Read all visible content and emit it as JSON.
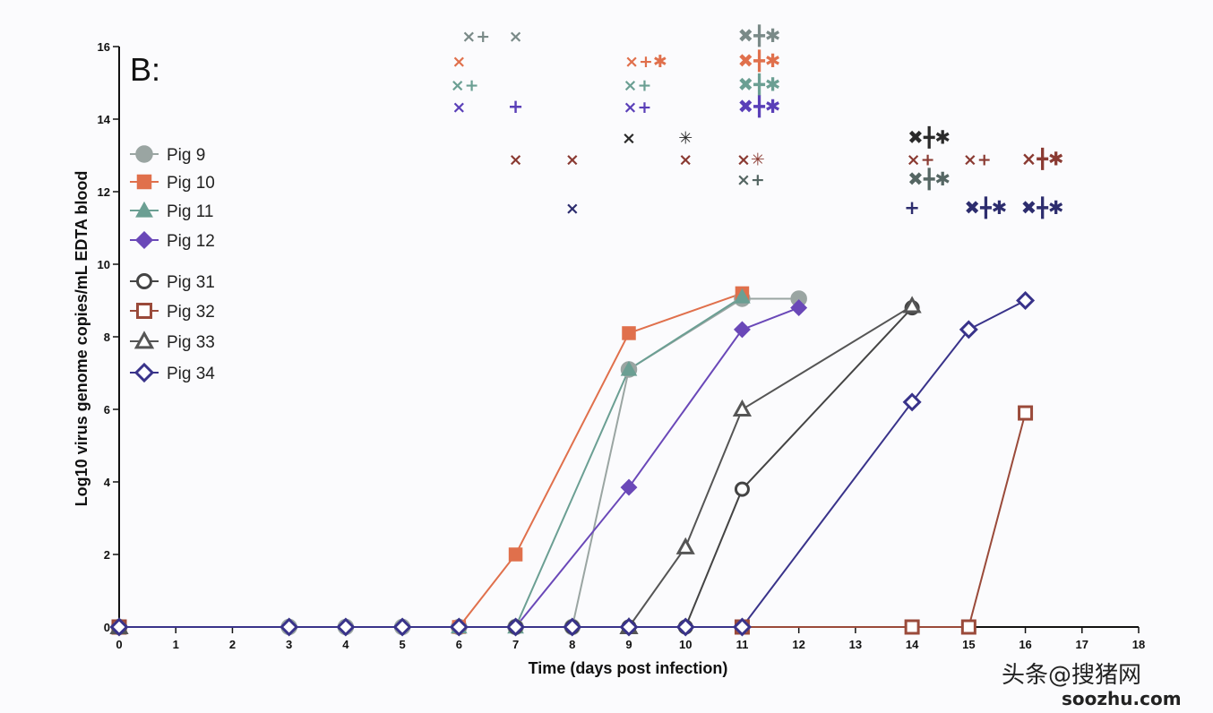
{
  "chart_data": {
    "type": "line",
    "panel_label": "B:",
    "xlabel": "Time (days post infection)",
    "ylabel": "Log10 virus genome copies/mL EDTA blood",
    "xlim": [
      0,
      18
    ],
    "ylim": [
      0,
      16
    ],
    "x_ticks": [
      "0",
      "1",
      "2",
      "3",
      "4",
      "5",
      "6",
      "7",
      "8",
      "9",
      "10",
      "11",
      "12",
      "13",
      "14",
      "15",
      "16",
      "17",
      "18"
    ],
    "y_ticks": [
      "0",
      "2",
      "4",
      "6",
      "8",
      "10",
      "12",
      "14",
      "16"
    ],
    "grid": false,
    "legend_position": "left",
    "series": [
      {
        "name": "Pig 9",
        "marker": "circle",
        "filled": true,
        "color": "#9aa5a2",
        "points": [
          [
            0,
            0
          ],
          [
            3,
            0
          ],
          [
            4,
            0
          ],
          [
            5,
            0
          ],
          [
            6,
            0
          ],
          [
            7,
            0
          ],
          [
            8,
            0
          ],
          [
            9,
            7.1
          ],
          [
            11,
            9.05
          ],
          [
            12,
            9.05
          ]
        ]
      },
      {
        "name": "Pig 10",
        "marker": "square",
        "filled": true,
        "color": "#e0704c",
        "points": [
          [
            0,
            0
          ],
          [
            6,
            0
          ],
          [
            7,
            2.0
          ],
          [
            9,
            8.1
          ],
          [
            11,
            9.2
          ]
        ]
      },
      {
        "name": "Pig 11",
        "marker": "triangle",
        "filled": true,
        "color": "#6b9f93",
        "points": [
          [
            0,
            0
          ],
          [
            6,
            0
          ],
          [
            7,
            0
          ],
          [
            9,
            7.1
          ],
          [
            11,
            9.1
          ]
        ]
      },
      {
        "name": "Pig 12",
        "marker": "diamond",
        "filled": true,
        "color": "#6a48b8",
        "points": [
          [
            0,
            0
          ],
          [
            7,
            0
          ],
          [
            9,
            3.85
          ],
          [
            11,
            8.2
          ],
          [
            12,
            8.8
          ]
        ]
      },
      {
        "name": "Pig 31",
        "marker": "circle",
        "filled": false,
        "color": "#444444",
        "points": [
          [
            0,
            0
          ],
          [
            7,
            0
          ],
          [
            8,
            0
          ],
          [
            9,
            0
          ],
          [
            10,
            0
          ],
          [
            11,
            3.8
          ],
          [
            14,
            8.8
          ]
        ]
      },
      {
        "name": "Pig 32",
        "marker": "square",
        "filled": false,
        "color": "#9a4a3a",
        "points": [
          [
            0,
            0
          ],
          [
            11,
            0
          ],
          [
            14,
            0
          ],
          [
            15,
            0
          ],
          [
            16,
            5.9
          ]
        ]
      },
      {
        "name": "Pig 33",
        "marker": "triangle",
        "filled": false,
        "color": "#555555",
        "points": [
          [
            0,
            0
          ],
          [
            9,
            0
          ],
          [
            10,
            2.2
          ],
          [
            11,
            6.0
          ],
          [
            14,
            8.85
          ]
        ]
      },
      {
        "name": "Pig 34",
        "marker": "diamond",
        "filled": false,
        "color": "#39338a",
        "points": [
          [
            0,
            0
          ],
          [
            3,
            0
          ],
          [
            4,
            0
          ],
          [
            5,
            0
          ],
          [
            6,
            0
          ],
          [
            7,
            0
          ],
          [
            8,
            0
          ],
          [
            9,
            0
          ],
          [
            10,
            0
          ],
          [
            11,
            0
          ],
          [
            14,
            6.2
          ],
          [
            15,
            8.2
          ],
          [
            16,
            9.0
          ]
        ]
      }
    ],
    "symbol_rows": [
      {
        "y": 16.3,
        "color": "#7a8a88",
        "symbols": [
          {
            "x": 6.3,
            "text": "×+",
            "size": 19
          },
          {
            "x": 7.0,
            "text": "×",
            "size": 19
          },
          {
            "x": 11.3,
            "text": "✖╋✱",
            "size": 21
          }
        ]
      },
      {
        "y": 15.6,
        "color": "#e0704c",
        "symbols": [
          {
            "x": 6.0,
            "text": "×",
            "size": 19
          },
          {
            "x": 9.3,
            "text": "×+✱",
            "size": 19
          },
          {
            "x": 11.3,
            "text": "✖╋✱",
            "size": 21
          }
        ]
      },
      {
        "y": 14.95,
        "color": "#6b9f93",
        "symbols": [
          {
            "x": 6.1,
            "text": "×+",
            "size": 19
          },
          {
            "x": 9.15,
            "text": "×+",
            "size": 19
          },
          {
            "x": 11.3,
            "text": "✖╋✱",
            "size": 21
          }
        ]
      },
      {
        "y": 14.35,
        "color": "#5a3fb8",
        "symbols": [
          {
            "x": 6.0,
            "text": "×",
            "size": 19
          },
          {
            "x": 7.0,
            "text": "+",
            "size": 21
          },
          {
            "x": 9.15,
            "text": "×+",
            "size": 19
          },
          {
            "x": 11.3,
            "text": "✖╋✱",
            "size": 21
          }
        ]
      },
      {
        "y": 13.5,
        "color": "#2a2a2a",
        "symbols": [
          {
            "x": 9.0,
            "text": "×",
            "size": 19
          },
          {
            "x": 10.0,
            "text": "✳",
            "size": 19
          },
          {
            "x": 14.3,
            "text": "✖╋✱",
            "size": 21
          }
        ]
      },
      {
        "y": 12.9,
        "color": "#8a3a32",
        "symbols": [
          {
            "x": 7.0,
            "text": "×",
            "size": 19
          },
          {
            "x": 8.0,
            "text": "×",
            "size": 19
          },
          {
            "x": 10.0,
            "text": "×",
            "size": 19
          },
          {
            "x": 11.15,
            "text": "×✳",
            "size": 19
          },
          {
            "x": 14.15,
            "text": "×+",
            "size": 19
          },
          {
            "x": 15.15,
            "text": "×+",
            "size": 19
          },
          {
            "x": 16.3,
            "text": "×╋✱",
            "size": 21
          }
        ]
      },
      {
        "y": 12.35,
        "color": "#556663",
        "symbols": [
          {
            "x": 11.15,
            "text": "×+",
            "size": 19
          },
          {
            "x": 14.3,
            "text": "✖╋✱",
            "size": 21
          }
        ]
      },
      {
        "y": 11.55,
        "color": "#2d2d6e",
        "symbols": [
          {
            "x": 8.0,
            "text": "×",
            "size": 19
          },
          {
            "x": 14.0,
            "text": "+",
            "size": 21
          },
          {
            "x": 15.3,
            "text": "✖╋✱",
            "size": 21
          },
          {
            "x": 16.3,
            "text": "✖╋✱",
            "size": 21
          }
        ]
      }
    ]
  },
  "watermark": {
    "main": "头条@搜猪网",
    "site": "soozhu.com"
  }
}
